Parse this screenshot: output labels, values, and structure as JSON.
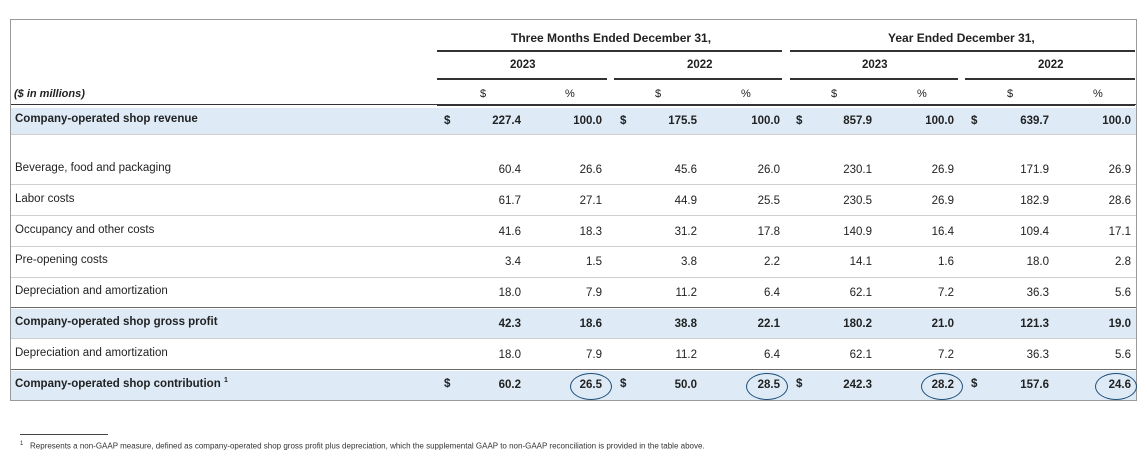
{
  "header": {
    "group_three_months": "Three Months Ended December 31,",
    "group_year": "Year Ended December 31,",
    "years": [
      "2023",
      "2022",
      "2023",
      "2022"
    ],
    "units_label": "($ in millions)",
    "col_dollar": "$",
    "col_percent": "%"
  },
  "currency_symbol": "$",
  "rows": [
    {
      "label": "Company-operated shop revenue",
      "bold": true,
      "values": [
        "227.4",
        "100.0",
        "175.5",
        "100.0",
        "857.9",
        "100.0",
        "639.7",
        "100.0"
      ]
    },
    {
      "label": "Beverage, food and packaging",
      "bold": false,
      "values": [
        "60.4",
        "26.6",
        "45.6",
        "26.0",
        "230.1",
        "26.9",
        "171.9",
        "26.9"
      ]
    },
    {
      "label": "Labor costs",
      "bold": false,
      "values": [
        "61.7",
        "27.1",
        "44.9",
        "25.5",
        "230.5",
        "26.9",
        "182.9",
        "28.6"
      ]
    },
    {
      "label": "Occupancy and other costs",
      "bold": false,
      "values": [
        "41.6",
        "18.3",
        "31.2",
        "17.8",
        "140.9",
        "16.4",
        "109.4",
        "17.1"
      ]
    },
    {
      "label": "Pre-opening costs",
      "bold": false,
      "values": [
        "3.4",
        "1.5",
        "3.8",
        "2.2",
        "14.1",
        "1.6",
        "18.0",
        "2.8"
      ]
    },
    {
      "label": "Depreciation and amortization",
      "bold": false,
      "values": [
        "18.0",
        "7.9",
        "11.2",
        "6.4",
        "62.1",
        "7.2",
        "36.3",
        "5.6"
      ]
    },
    {
      "label": "Company-operated shop gross profit",
      "bold": true,
      "values": [
        "42.3",
        "18.6",
        "38.8",
        "22.1",
        "180.2",
        "21.0",
        "121.3",
        "19.0"
      ]
    },
    {
      "label": "Depreciation and amortization",
      "bold": false,
      "values": [
        "18.0",
        "7.9",
        "11.2",
        "6.4",
        "62.1",
        "7.2",
        "36.3",
        "5.6"
      ]
    },
    {
      "label": "Company-operated shop contribution",
      "bold": true,
      "values": [
        "60.2",
        "26.5",
        "50.0",
        "28.5",
        "242.3",
        "28.2",
        "157.6",
        "24.6"
      ]
    }
  ],
  "footnote_marker": "1",
  "footnote": "Represents a non-GAAP measure, defined as company-operated shop gross profit plus depreciation, which the supplemental GAAP to non-GAAP reconciliation is provided in the table above."
}
